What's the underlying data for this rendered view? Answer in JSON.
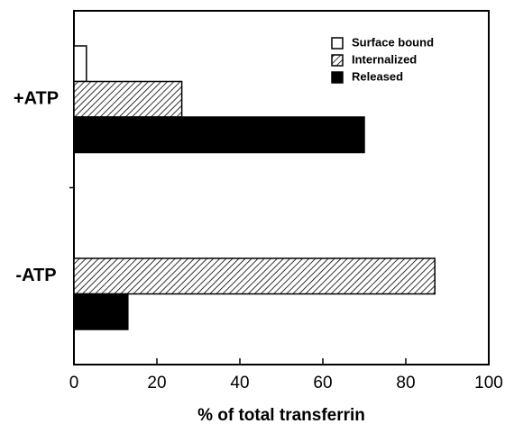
{
  "chart_data": {
    "type": "barh",
    "categories": [
      "+ATP",
      "-ATP"
    ],
    "series": [
      {
        "name": "Surface bound",
        "color": "#000000",
        "fill": "open",
        "values": [
          3,
          0
        ]
      },
      {
        "name": "Internalized",
        "color": "#000000",
        "fill": "hatched",
        "values": [
          26,
          87
        ]
      },
      {
        "name": "Released",
        "color": "#000000",
        "fill": "solid",
        "values": [
          70,
          13
        ]
      }
    ],
    "xlabel": "% of total transferrin",
    "xlim": [
      0,
      100
    ],
    "xticks": [
      0,
      20,
      40,
      60,
      80,
      100
    ],
    "legend": "upper right",
    "grid": false
  }
}
